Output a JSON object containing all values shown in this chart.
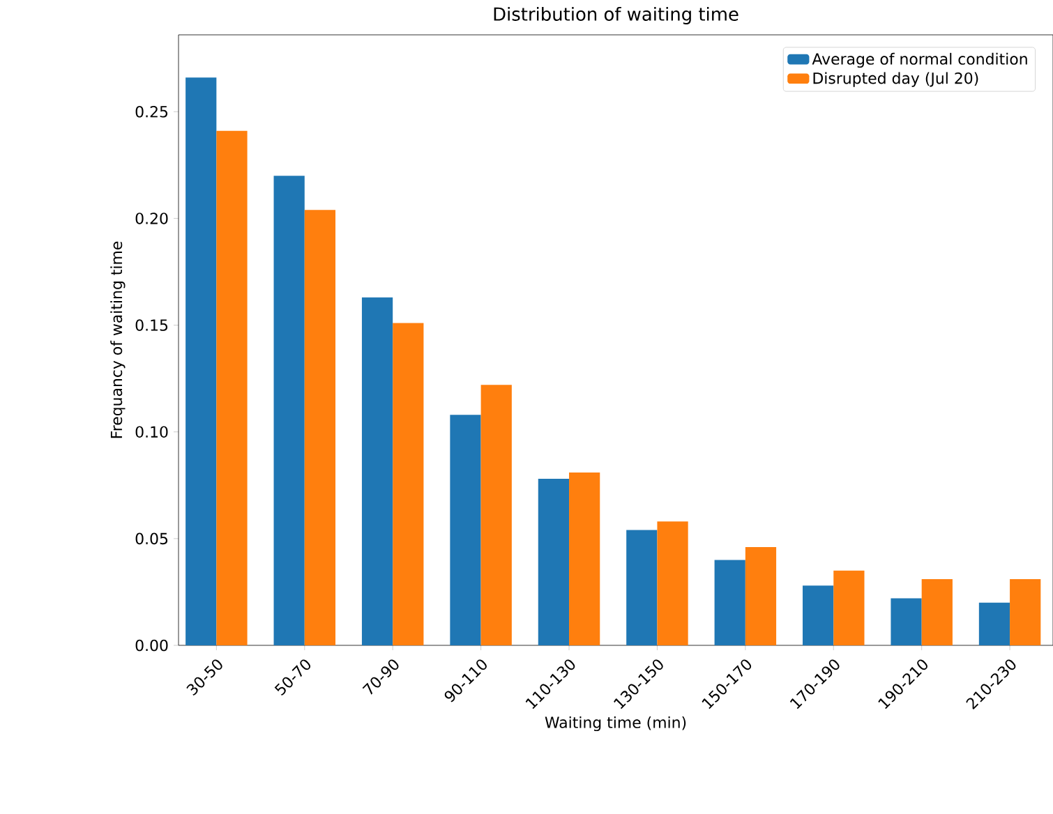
{
  "chart_data": {
    "type": "bar",
    "title": "Distribution of waiting time",
    "xlabel": "Waiting time (min)",
    "ylabel": "Frequancy of waiting time",
    "categories": [
      "30-50",
      "50-70",
      "70-90",
      "90-110",
      "110-130",
      "130-150",
      "150-170",
      "170-190",
      "190-210",
      "210-230"
    ],
    "series": [
      {
        "name": "Average of normal condition",
        "color": "#1f77b4",
        "values": [
          0.266,
          0.22,
          0.163,
          0.108,
          0.078,
          0.054,
          0.04,
          0.028,
          0.022,
          0.02
        ]
      },
      {
        "name": "Disrupted day (Jul 20)",
        "color": "#ff7f0e",
        "values": [
          0.241,
          0.204,
          0.151,
          0.122,
          0.081,
          0.058,
          0.046,
          0.035,
          0.031,
          0.031
        ]
      }
    ],
    "ylim": [
      0,
      0.286
    ],
    "yticks": [
      {
        "value": 0,
        "label": "0.00"
      },
      {
        "value": 0.05,
        "label": "0.05"
      },
      {
        "value": 0.1,
        "label": "0.10"
      },
      {
        "value": 0.15,
        "label": "0.15"
      },
      {
        "value": 0.2,
        "label": "0.20"
      },
      {
        "value": 0.25,
        "label": "0.25"
      }
    ],
    "legend": "top right",
    "grid": false
  }
}
